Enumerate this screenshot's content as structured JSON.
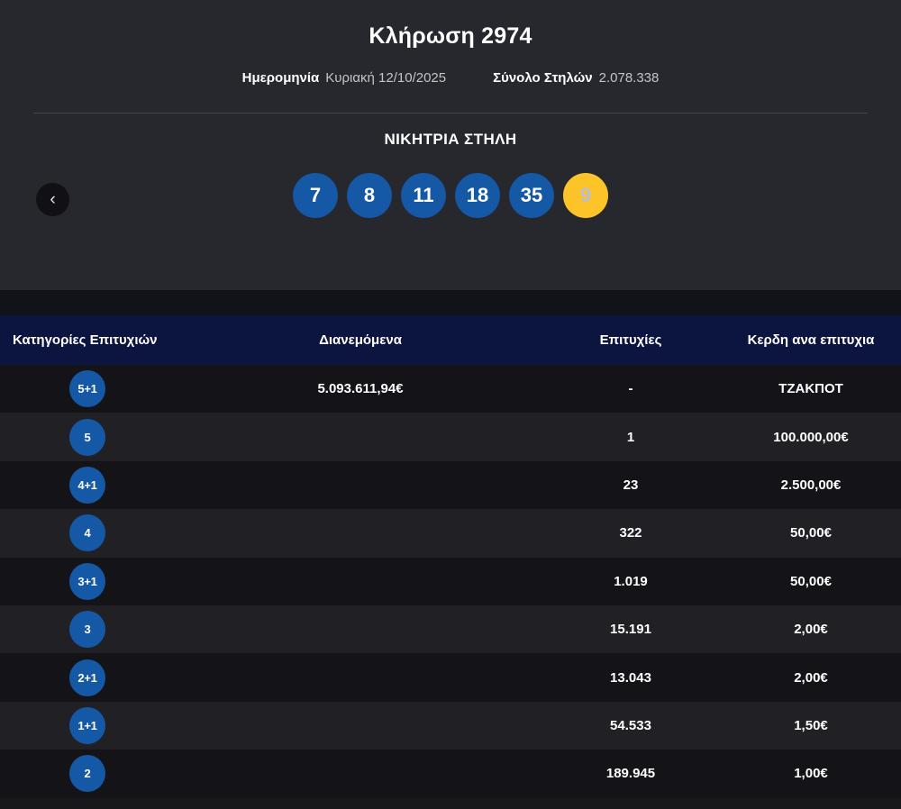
{
  "header": {
    "title": "Κλήρωση 2974",
    "date_label": "Ημερομηνία",
    "date_value": "Κυριακή 12/10/2025",
    "columns_label": "Σύνολο Στηλών",
    "columns_value": "2.078.338"
  },
  "winning": {
    "title": "ΝΙΚΗΤΡΙΑ ΣΤΗΛΗ",
    "numbers": [
      "7",
      "8",
      "11",
      "18",
      "35"
    ],
    "joker": "9",
    "prev_icon": "‹"
  },
  "table": {
    "headers": {
      "category": "Κατηγορίες Επιτυχιών",
      "distributed": "Διανεμόμενα",
      "winners": "Επιτυχίες",
      "prize": "Κερδη ανα επιτυχια"
    },
    "rows": [
      {
        "category": "5+1",
        "distributed": "5.093.611,94€",
        "winners": "-",
        "prize": "ΤΖΑΚΠΟΤ"
      },
      {
        "category": "5",
        "distributed": "",
        "winners": "1",
        "prize": "100.000,00€"
      },
      {
        "category": "4+1",
        "distributed": "",
        "winners": "23",
        "prize": "2.500,00€"
      },
      {
        "category": "4",
        "distributed": "",
        "winners": "322",
        "prize": "50,00€"
      },
      {
        "category": "3+1",
        "distributed": "",
        "winners": "1.019",
        "prize": "50,00€"
      },
      {
        "category": "3",
        "distributed": "",
        "winners": "15.191",
        "prize": "2,00€"
      },
      {
        "category": "2+1",
        "distributed": "",
        "winners": "13.043",
        "prize": "2,00€"
      },
      {
        "category": "1+1",
        "distributed": "",
        "winners": "54.533",
        "prize": "1,50€"
      },
      {
        "category": "2",
        "distributed": "",
        "winners": "189.945",
        "prize": "1,00€"
      }
    ]
  },
  "colors": {
    "top_bg": "#26282e",
    "ball_blue": "#1558a6",
    "ball_yellow": "#fdc429",
    "joker_text": "#b9c0d3",
    "header_navy": "#0c1440",
    "row_dark": "#141418",
    "row_light": "#212125"
  }
}
